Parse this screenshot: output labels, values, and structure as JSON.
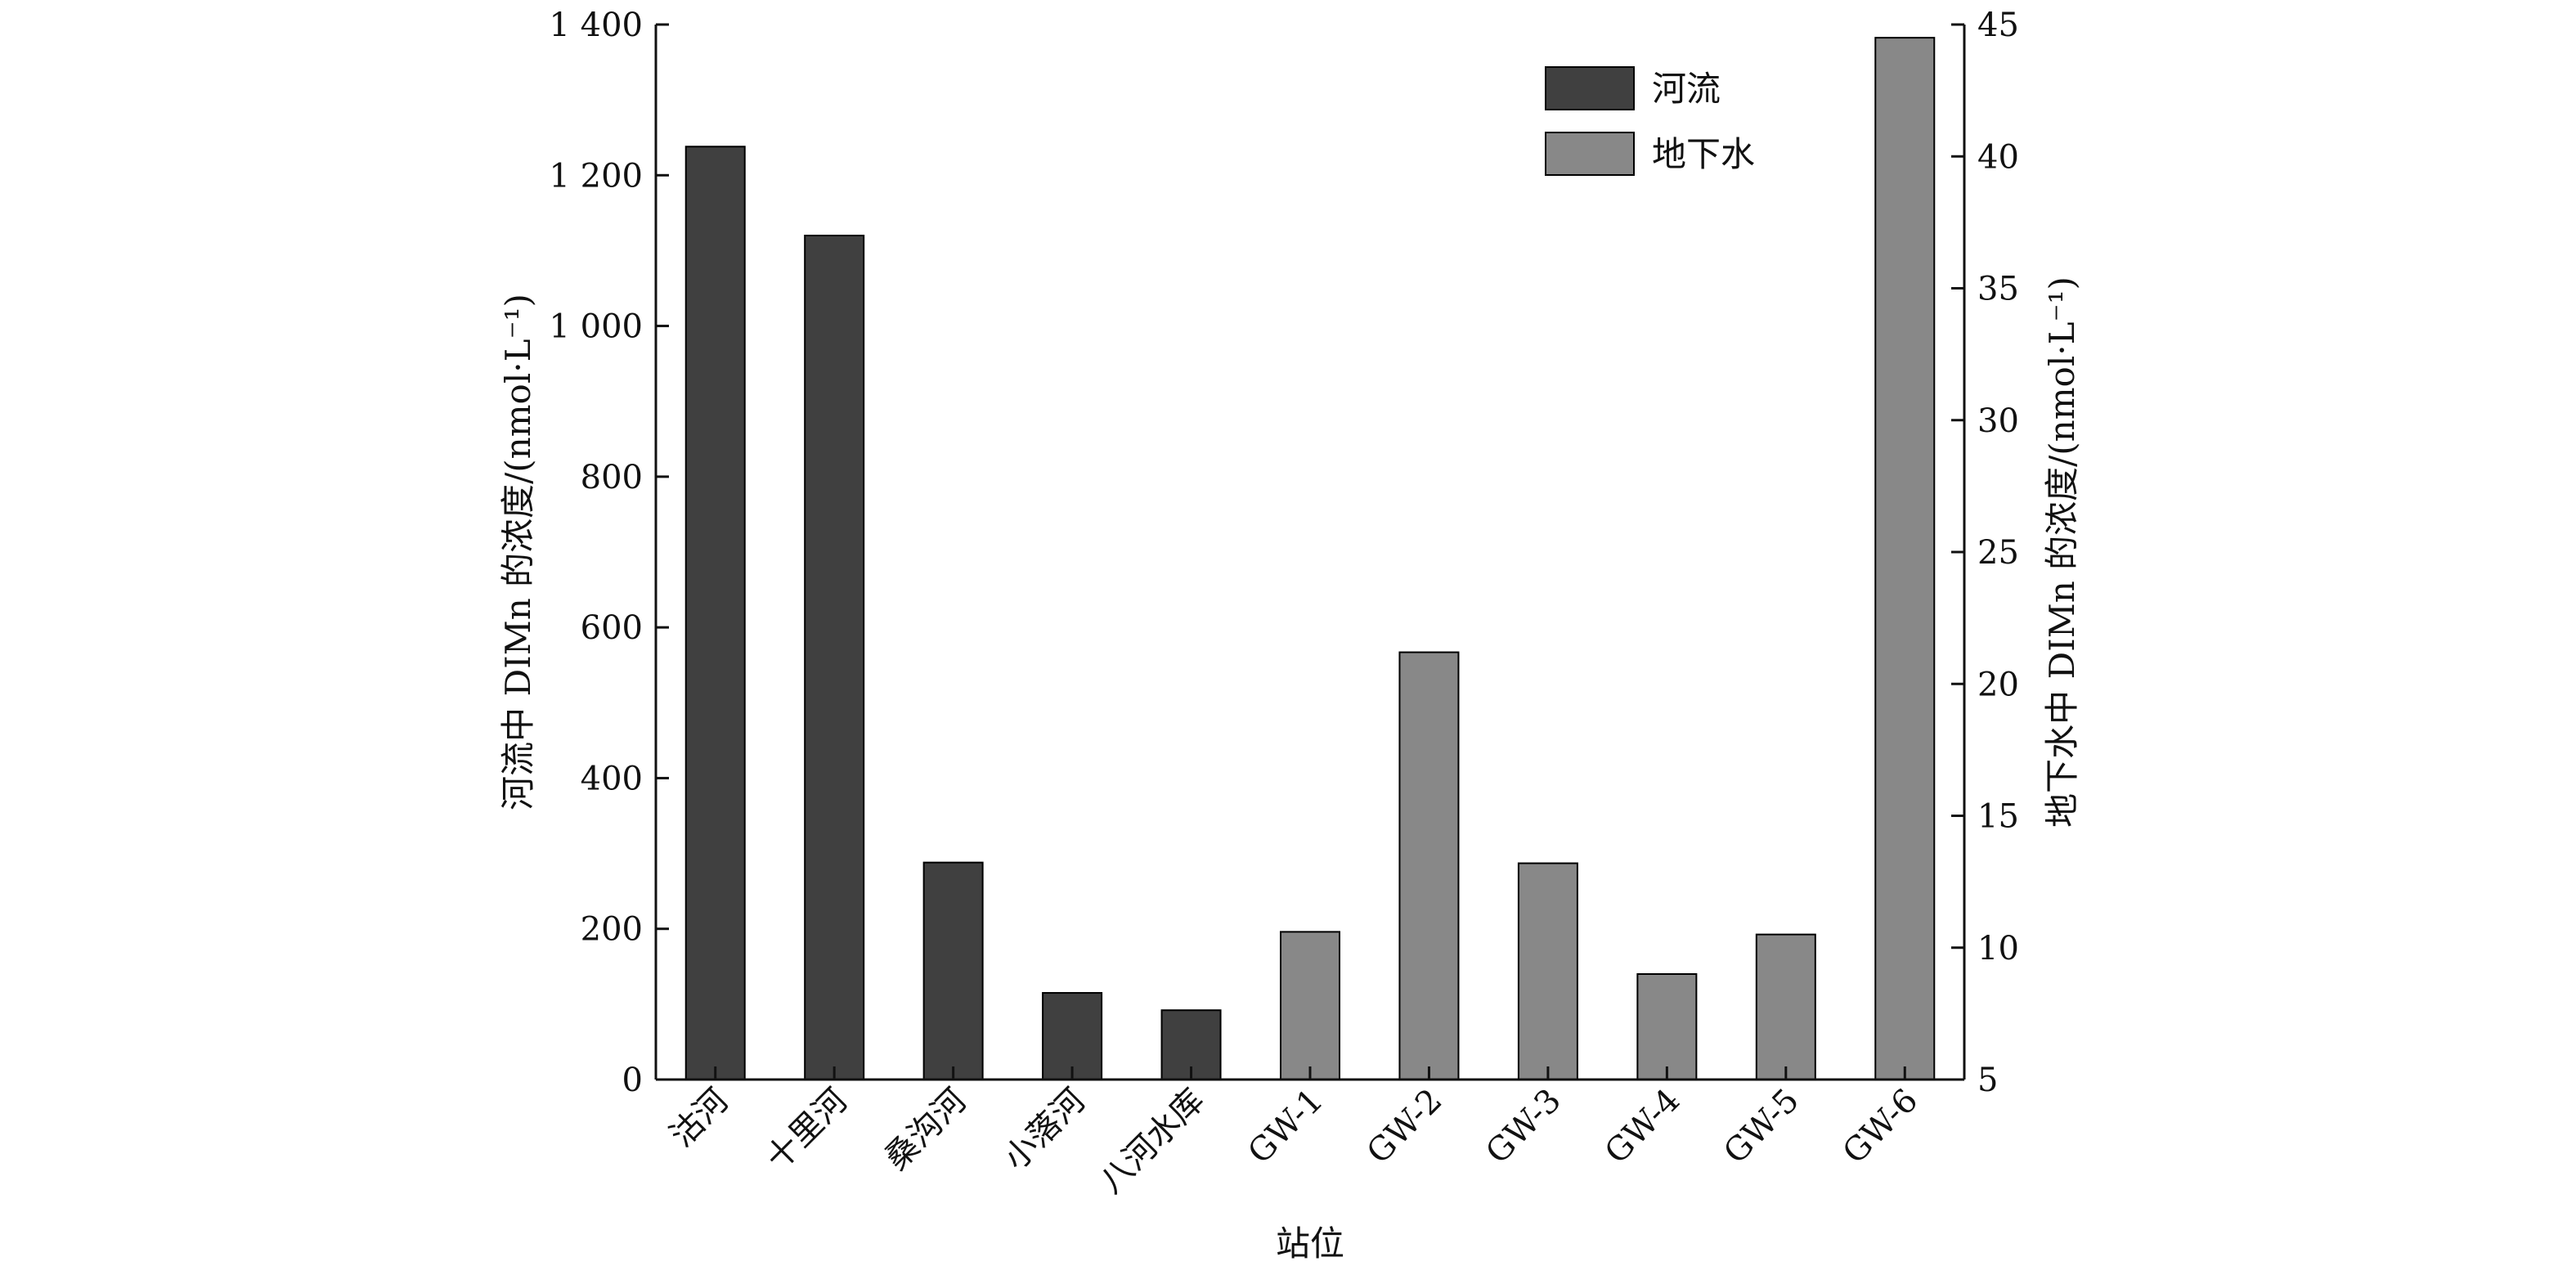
{
  "chart_data": {
    "type": "bar",
    "categories": [
      "沽河",
      "十里河",
      "桑沟河",
      "小落河",
      "八河水库",
      "GW-1",
      "GW-2",
      "GW-3",
      "GW-4",
      "GW-5",
      "GW-6"
    ],
    "xlabel": "站位",
    "ylabel_left": "河流中 DIMn 的浓度/(nmol·L⁻¹)",
    "ylabel_right": "地下水中 DIMn 的浓度/(nmol·L⁻¹)",
    "ylim_left": [
      0,
      1400
    ],
    "yticks_left": [
      0,
      200,
      400,
      600,
      800,
      1000,
      1200,
      1400
    ],
    "yticks_left_labels": [
      "0",
      "200",
      "400",
      "600",
      "800",
      "1 000",
      "1 200",
      "1 400"
    ],
    "ylim_right": [
      5,
      45
    ],
    "yticks_right": [
      5,
      10,
      15,
      20,
      25,
      30,
      35,
      40,
      45
    ],
    "grid": false,
    "legend_position": "top-right",
    "colors": {
      "river": "#404040",
      "groundwater": "#888888",
      "axis": "#111111"
    },
    "series": [
      {
        "name": "河流",
        "axis": "left",
        "color_key": "river",
        "points": [
          {
            "category": "沽河",
            "value": 1238
          },
          {
            "category": "十里河",
            "value": 1120
          },
          {
            "category": "桑沟河",
            "value": 288
          },
          {
            "category": "小落河",
            "value": 115
          },
          {
            "category": "八河水库",
            "value": 92
          }
        ]
      },
      {
        "name": "地下水",
        "axis": "right",
        "color_key": "groundwater",
        "points": [
          {
            "category": "GW-1",
            "value": 10.6
          },
          {
            "category": "GW-2",
            "value": 21.2
          },
          {
            "category": "GW-3",
            "value": 13.2
          },
          {
            "category": "GW-4",
            "value": 9.0
          },
          {
            "category": "GW-5",
            "value": 10.5
          },
          {
            "category": "GW-6",
            "value": 44.5
          }
        ]
      }
    ]
  }
}
